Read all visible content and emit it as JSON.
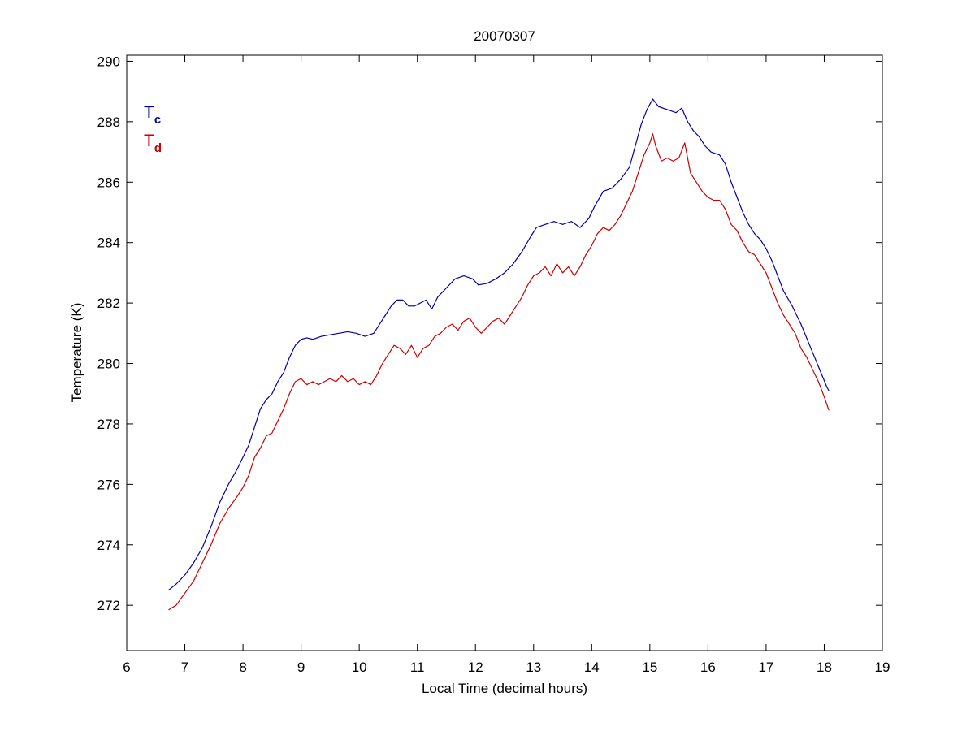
{
  "chart_data": {
    "type": "line",
    "title": "20070307",
    "xlabel": "Local Time (decimal hours)",
    "ylabel": "Temperature (K)",
    "xlim": [
      6,
      19
    ],
    "ylim": [
      270.5,
      290.2
    ],
    "xticks": [
      6,
      7,
      8,
      9,
      10,
      11,
      12,
      13,
      14,
      15,
      16,
      17,
      18,
      19
    ],
    "yticks": [
      272,
      274,
      276,
      278,
      280,
      282,
      284,
      286,
      288,
      290
    ],
    "grid": false,
    "legend_position": "top-left",
    "series": [
      {
        "name": "T",
        "name_sub": "c",
        "color": "#0000aa",
        "points": [
          [
            6.72,
            272.5
          ],
          [
            6.85,
            272.7
          ],
          [
            7.0,
            273.0
          ],
          [
            7.15,
            273.4
          ],
          [
            7.3,
            273.9
          ],
          [
            7.45,
            274.6
          ],
          [
            7.6,
            275.4
          ],
          [
            7.75,
            276.0
          ],
          [
            7.9,
            276.5
          ],
          [
            8.0,
            276.9
          ],
          [
            8.1,
            277.3
          ],
          [
            8.2,
            277.9
          ],
          [
            8.3,
            278.5
          ],
          [
            8.4,
            278.8
          ],
          [
            8.5,
            279.0
          ],
          [
            8.6,
            279.4
          ],
          [
            8.7,
            279.7
          ],
          [
            8.8,
            280.2
          ],
          [
            8.9,
            280.6
          ],
          [
            9.0,
            280.8
          ],
          [
            9.1,
            280.85
          ],
          [
            9.2,
            280.8
          ],
          [
            9.35,
            280.9
          ],
          [
            9.5,
            280.95
          ],
          [
            9.65,
            281.0
          ],
          [
            9.8,
            281.05
          ],
          [
            9.95,
            281.0
          ],
          [
            10.1,
            280.9
          ],
          [
            10.25,
            281.0
          ],
          [
            10.35,
            281.3
          ],
          [
            10.45,
            281.6
          ],
          [
            10.55,
            281.9
          ],
          [
            10.65,
            282.1
          ],
          [
            10.75,
            282.1
          ],
          [
            10.85,
            281.9
          ],
          [
            10.95,
            281.9
          ],
          [
            11.05,
            282.0
          ],
          [
            11.15,
            282.1
          ],
          [
            11.25,
            281.8
          ],
          [
            11.35,
            282.2
          ],
          [
            11.5,
            282.5
          ],
          [
            11.65,
            282.8
          ],
          [
            11.8,
            282.9
          ],
          [
            11.95,
            282.8
          ],
          [
            12.05,
            282.6
          ],
          [
            12.2,
            282.65
          ],
          [
            12.35,
            282.8
          ],
          [
            12.5,
            283.0
          ],
          [
            12.65,
            283.3
          ],
          [
            12.8,
            283.7
          ],
          [
            12.95,
            284.2
          ],
          [
            13.05,
            284.5
          ],
          [
            13.2,
            284.6
          ],
          [
            13.35,
            284.7
          ],
          [
            13.5,
            284.6
          ],
          [
            13.65,
            284.7
          ],
          [
            13.8,
            284.5
          ],
          [
            13.95,
            284.8
          ],
          [
            14.05,
            285.2
          ],
          [
            14.2,
            285.7
          ],
          [
            14.35,
            285.8
          ],
          [
            14.5,
            286.1
          ],
          [
            14.65,
            286.5
          ],
          [
            14.75,
            287.2
          ],
          [
            14.85,
            287.9
          ],
          [
            14.95,
            288.4
          ],
          [
            15.05,
            288.75
          ],
          [
            15.15,
            288.5
          ],
          [
            15.3,
            288.4
          ],
          [
            15.45,
            288.3
          ],
          [
            15.55,
            288.45
          ],
          [
            15.65,
            288.0
          ],
          [
            15.75,
            287.7
          ],
          [
            15.85,
            287.5
          ],
          [
            15.95,
            287.2
          ],
          [
            16.05,
            287.0
          ],
          [
            16.2,
            286.9
          ],
          [
            16.3,
            286.6
          ],
          [
            16.4,
            286.0
          ],
          [
            16.5,
            285.5
          ],
          [
            16.6,
            285.0
          ],
          [
            16.7,
            284.6
          ],
          [
            16.8,
            284.3
          ],
          [
            16.9,
            284.1
          ],
          [
            17.0,
            283.8
          ],
          [
            17.1,
            283.4
          ],
          [
            17.2,
            282.9
          ],
          [
            17.3,
            282.4
          ],
          [
            17.45,
            281.9
          ],
          [
            17.6,
            281.3
          ],
          [
            17.75,
            280.6
          ],
          [
            17.9,
            279.9
          ],
          [
            18.05,
            279.2
          ],
          [
            18.08,
            279.1
          ]
        ]
      },
      {
        "name": "T",
        "name_sub": "d",
        "color": "#cc0000",
        "points": [
          [
            6.72,
            271.85
          ],
          [
            6.85,
            272.0
          ],
          [
            7.0,
            272.4
          ],
          [
            7.15,
            272.8
          ],
          [
            7.3,
            273.4
          ],
          [
            7.45,
            274.0
          ],
          [
            7.6,
            274.7
          ],
          [
            7.75,
            275.2
          ],
          [
            7.9,
            275.6
          ],
          [
            8.0,
            275.9
          ],
          [
            8.1,
            276.3
          ],
          [
            8.2,
            276.9
          ],
          [
            8.3,
            277.2
          ],
          [
            8.4,
            277.6
          ],
          [
            8.5,
            277.7
          ],
          [
            8.6,
            278.1
          ],
          [
            8.7,
            278.5
          ],
          [
            8.8,
            279.0
          ],
          [
            8.9,
            279.4
          ],
          [
            9.0,
            279.5
          ],
          [
            9.1,
            279.3
          ],
          [
            9.2,
            279.4
          ],
          [
            9.3,
            279.3
          ],
          [
            9.4,
            279.4
          ],
          [
            9.5,
            279.5
          ],
          [
            9.6,
            279.4
          ],
          [
            9.7,
            279.6
          ],
          [
            9.8,
            279.4
          ],
          [
            9.9,
            279.5
          ],
          [
            10.0,
            279.3
          ],
          [
            10.1,
            279.4
          ],
          [
            10.2,
            279.3
          ],
          [
            10.3,
            279.6
          ],
          [
            10.4,
            280.0
          ],
          [
            10.5,
            280.3
          ],
          [
            10.6,
            280.6
          ],
          [
            10.7,
            280.5
          ],
          [
            10.8,
            280.3
          ],
          [
            10.9,
            280.6
          ],
          [
            11.0,
            280.2
          ],
          [
            11.1,
            280.5
          ],
          [
            11.2,
            280.6
          ],
          [
            11.3,
            280.9
          ],
          [
            11.4,
            281.0
          ],
          [
            11.5,
            281.2
          ],
          [
            11.6,
            281.3
          ],
          [
            11.7,
            281.1
          ],
          [
            11.8,
            281.4
          ],
          [
            11.9,
            281.5
          ],
          [
            12.0,
            281.2
          ],
          [
            12.1,
            281.0
          ],
          [
            12.2,
            281.2
          ],
          [
            12.3,
            281.4
          ],
          [
            12.4,
            281.5
          ],
          [
            12.5,
            281.3
          ],
          [
            12.6,
            281.6
          ],
          [
            12.7,
            281.9
          ],
          [
            12.8,
            282.2
          ],
          [
            12.9,
            282.6
          ],
          [
            13.0,
            282.9
          ],
          [
            13.1,
            283.0
          ],
          [
            13.2,
            283.2
          ],
          [
            13.3,
            282.9
          ],
          [
            13.4,
            283.3
          ],
          [
            13.5,
            283.0
          ],
          [
            13.6,
            283.2
          ],
          [
            13.7,
            282.9
          ],
          [
            13.8,
            283.2
          ],
          [
            13.9,
            283.6
          ],
          [
            14.0,
            283.9
          ],
          [
            14.1,
            284.3
          ],
          [
            14.2,
            284.5
          ],
          [
            14.3,
            284.4
          ],
          [
            14.4,
            284.6
          ],
          [
            14.5,
            284.9
          ],
          [
            14.6,
            285.3
          ],
          [
            14.7,
            285.7
          ],
          [
            14.8,
            286.3
          ],
          [
            14.9,
            286.9
          ],
          [
            15.0,
            287.3
          ],
          [
            15.05,
            287.6
          ],
          [
            15.1,
            287.2
          ],
          [
            15.2,
            286.7
          ],
          [
            15.3,
            286.8
          ],
          [
            15.4,
            286.7
          ],
          [
            15.5,
            286.8
          ],
          [
            15.6,
            287.3
          ],
          [
            15.7,
            286.3
          ],
          [
            15.8,
            286.0
          ],
          [
            15.9,
            285.7
          ],
          [
            16.0,
            285.5
          ],
          [
            16.1,
            285.4
          ],
          [
            16.2,
            285.4
          ],
          [
            16.3,
            285.1
          ],
          [
            16.4,
            284.6
          ],
          [
            16.5,
            284.4
          ],
          [
            16.6,
            284.0
          ],
          [
            16.7,
            283.7
          ],
          [
            16.8,
            283.6
          ],
          [
            16.9,
            283.3
          ],
          [
            17.0,
            283.0
          ],
          [
            17.1,
            282.5
          ],
          [
            17.2,
            282.0
          ],
          [
            17.3,
            281.6
          ],
          [
            17.4,
            281.3
          ],
          [
            17.5,
            281.0
          ],
          [
            17.6,
            280.5
          ],
          [
            17.7,
            280.2
          ],
          [
            17.8,
            279.8
          ],
          [
            17.9,
            279.4
          ],
          [
            18.0,
            278.9
          ],
          [
            18.08,
            278.45
          ]
        ]
      }
    ]
  }
}
